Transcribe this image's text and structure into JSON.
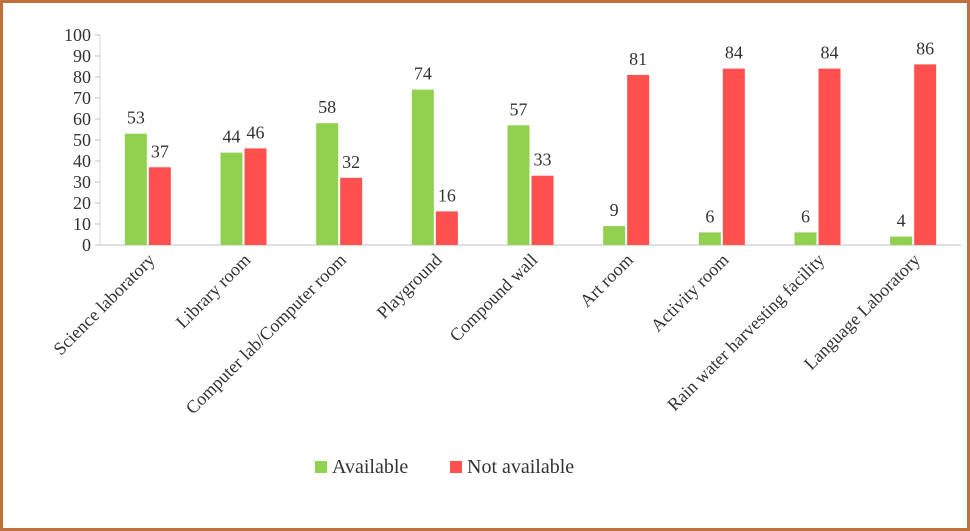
{
  "chart_data": {
    "type": "bar",
    "title": "",
    "xlabel": "",
    "ylabel": "",
    "ylim": [
      0,
      100
    ],
    "yticks": [
      0,
      10,
      20,
      30,
      40,
      50,
      60,
      70,
      80,
      90,
      100
    ],
    "grid": false,
    "legend_position": "bottom",
    "categories": [
      "Science laboratory",
      "Library room",
      "Computer lab/Computer room",
      "Playground",
      "Compound wall",
      "Art room",
      "Activity room",
      "Rain water harvesting facility",
      "Language Laboratory"
    ],
    "series": [
      {
        "name": "Available",
        "color": "#92d050",
        "values": [
          53,
          44,
          58,
          74,
          57,
          9,
          6,
          6,
          4
        ]
      },
      {
        "name": "Not available",
        "color": "#ff5050",
        "values": [
          37,
          46,
          32,
          16,
          33,
          81,
          84,
          84,
          86
        ]
      }
    ]
  }
}
